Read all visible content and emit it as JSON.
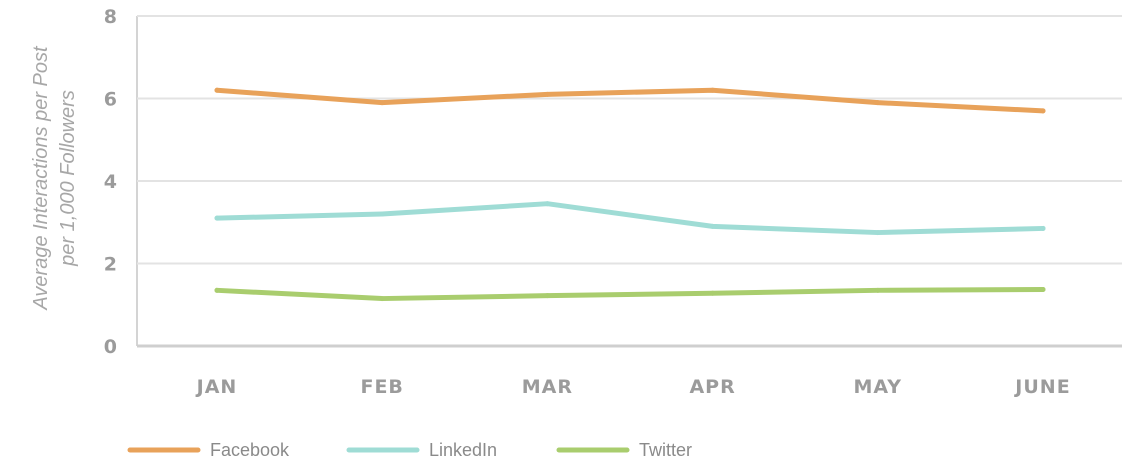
{
  "chart_data": {
    "type": "line",
    "title": "",
    "ylabel_lines": [
      "Average Interactions per Post",
      "per 1,000 Followers"
    ],
    "xlabel": "",
    "categories": [
      "JAN",
      "FEB",
      "MAR",
      "APR",
      "MAY",
      "JUNE"
    ],
    "yticks": [
      "0",
      "2",
      "4",
      "6",
      "8"
    ],
    "ylim": [
      0,
      8
    ],
    "grid": true,
    "legend_placement": "bottom-left",
    "series": [
      {
        "name": "Facebook",
        "color": "#e8a25a",
        "values": [
          6.2,
          5.9,
          6.1,
          6.2,
          5.9,
          5.7
        ]
      },
      {
        "name": "LinkedIn",
        "color": "#9fdcd5",
        "values": [
          3.1,
          3.2,
          3.45,
          2.9,
          2.75,
          2.85
        ]
      },
      {
        "name": "Twitter",
        "color": "#a9cd6e",
        "values": [
          1.35,
          1.15,
          1.22,
          1.28,
          1.35,
          1.37
        ]
      }
    ]
  }
}
